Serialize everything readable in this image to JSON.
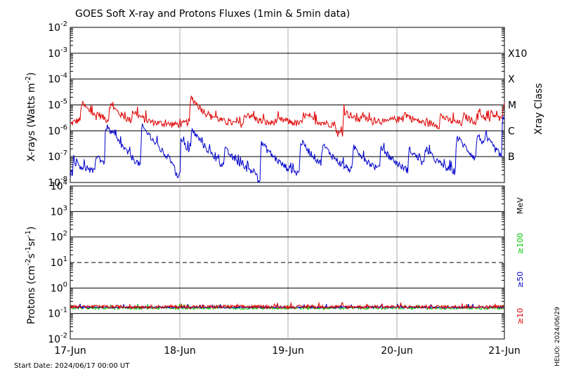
{
  "chart_data": [
    {
      "type": "line",
      "title": "GOES Soft X-ray and Protons Fluxes   (1min & 5min data)",
      "ylabel_base": "X-rays (Watts m",
      "ylabel_sup": "-2",
      "ylabel_close": ")",
      "yscale": "log",
      "ylim": [
        1e-08,
        0.01
      ],
      "ytick_mantissa": "10",
      "yticks": [
        {
          "v": 0.01,
          "exp": "-2"
        },
        {
          "v": 0.001,
          "exp": "-3"
        },
        {
          "v": 0.0001,
          "exp": "-4"
        },
        {
          "v": 1e-05,
          "exp": "-5"
        },
        {
          "v": 1e-06,
          "exp": "-6"
        },
        {
          "v": 1e-07,
          "exp": "-7"
        },
        {
          "v": 1e-08,
          "exp": "-8"
        }
      ],
      "right_axis_label": "Xray Class",
      "xray_classes": [
        {
          "label": "X10",
          "v": 0.001
        },
        {
          "label": "X",
          "v": 0.0001
        },
        {
          "label": "M",
          "v": 1e-05
        },
        {
          "label": "C",
          "v": 1e-06
        },
        {
          "label": "B",
          "v": 1e-07
        }
      ],
      "series": [
        {
          "color": "#e00000",
          "baseline": 1.8e-06,
          "peaks": [
            [
              0.42,
              1.2e-05
            ],
            [
              0.98,
              5e-06
            ],
            [
              1.46,
              1.1e-05
            ],
            [
              2.3,
              6e-06
            ],
            [
              2.9,
              2e-06
            ],
            [
              4.45,
              2e-05
            ],
            [
              4.7,
              1e-05
            ],
            [
              5.25,
              4e-06
            ],
            [
              6.5,
              5e-06
            ],
            [
              8.6,
              4.5e-06
            ],
            [
              10.1,
              6e-06
            ],
            [
              10.7,
              4e-06
            ],
            [
              11.2,
              3e-06
            ],
            [
              12.3,
              5e-06
            ],
            [
              13.65,
              4e-06
            ],
            [
              14.5,
              4e-06
            ],
            [
              15.05,
              5e-06
            ],
            [
              15.5,
              5e-06
            ],
            [
              15.95,
              1e-05
            ]
          ]
        },
        {
          "color": "#0000cc",
          "baseline": 2.2e-08,
          "peaks": [
            [
              0.14,
              7e-08
            ],
            [
              0.95,
              1.2e-07
            ],
            [
              1.32,
              1.6e-06
            ],
            [
              1.5,
              8e-07
            ],
            [
              2.65,
              1.5e-06
            ],
            [
              4.1,
              4e-07
            ],
            [
              4.48,
              1.1e-06
            ],
            [
              4.78,
              4e-07
            ],
            [
              5.7,
              2e-07
            ],
            [
              7.05,
              3.5e-07
            ],
            [
              8.5,
              4e-07
            ],
            [
              9.3,
              3e-07
            ],
            [
              10.45,
              2.5e-07
            ],
            [
              11.45,
              2.5e-07
            ],
            [
              12.5,
              2e-07
            ],
            [
              13.1,
              2e-07
            ],
            [
              14.25,
              6e-07
            ],
            [
              15.0,
              7e-07
            ],
            [
              15.3,
              6e-07
            ],
            [
              15.95,
              3e-06
            ]
          ]
        }
      ]
    },
    {
      "type": "line",
      "ylabel_base": "Protons (cm",
      "ylabel_sup1": "-2",
      "ylabel_mid1": "s",
      "ylabel_sup2": "-1",
      "ylabel_mid2": "sr",
      "ylabel_sup3": "-1",
      "ylabel_close": ")",
      "yscale": "log",
      "ylim": [
        0.01,
        10000
      ],
      "ytick_mantissa": "10",
      "yticks": [
        {
          "v": 10000,
          "exp": "4"
        },
        {
          "v": 1000,
          "exp": "3"
        },
        {
          "v": 100,
          "exp": "2"
        },
        {
          "v": 10,
          "exp": "1"
        },
        {
          "v": 1,
          "exp": "0"
        },
        {
          "v": 0.1,
          "exp": "-1"
        },
        {
          "v": 0.01,
          "exp": "-2"
        }
      ],
      "dashed_threshold": 10,
      "unit_label": "MeV",
      "energy_labels": [
        {
          "text": "≥100",
          "color": "#00cc00"
        },
        {
          "text": "≥50",
          "color": "#0000cc"
        },
        {
          "text": "≥10",
          "color": "#e00000"
        }
      ],
      "series": [
        {
          "color": "#00cc00",
          "level": 0.165
        },
        {
          "color": "#0000cc",
          "level": 0.175
        },
        {
          "color": "#e00000",
          "level": 0.185
        }
      ]
    }
  ],
  "x_axis": {
    "range": [
      "2024-06-17 00:00",
      "2024-06-21 00:00"
    ],
    "tick_labels": [
      "17-Jun",
      "18-Jun",
      "19-Jun",
      "20-Jun",
      "21-Jun"
    ]
  },
  "footer": {
    "start_date": "Start Date: 2024/06/17 00:00 UT",
    "helio": "HELIO: 2024/06/29"
  }
}
